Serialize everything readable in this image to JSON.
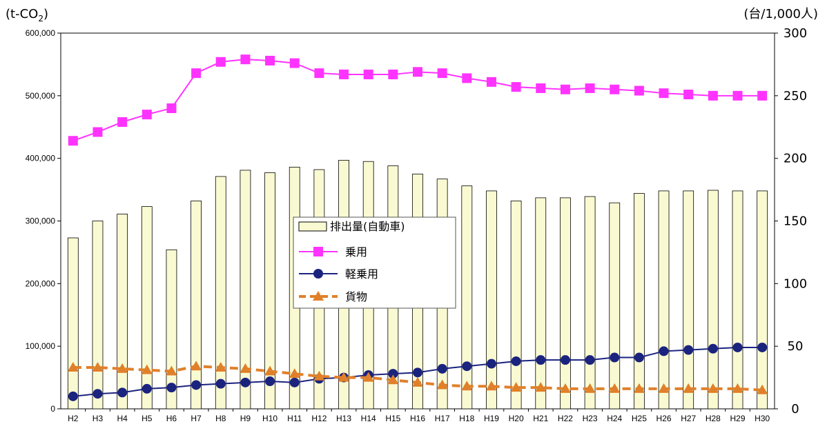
{
  "chart_data": {
    "type": "bar+line",
    "categories": [
      "H2",
      "H3",
      "H4",
      "H5",
      "H6",
      "H7",
      "H8",
      "H9",
      "H10",
      "H11",
      "H12",
      "H13",
      "H14",
      "H15",
      "H16",
      "H17",
      "H18",
      "H19",
      "H20",
      "H21",
      "H22",
      "H23",
      "H24",
      "H25",
      "H26",
      "H27",
      "H28",
      "H29",
      "H30"
    ],
    "left_axis": {
      "unit_label": "(t-CO2)",
      "ylim": [
        0,
        600000
      ],
      "ticks": [
        "0",
        "100,000",
        "200,000",
        "300,000",
        "400,000",
        "500,000",
        "600,000"
      ]
    },
    "right_axis": {
      "unit_label": "(台/1,000人)",
      "ylim": [
        0,
        300
      ],
      "ticks": [
        "0",
        "50",
        "100",
        "150",
        "200",
        "250",
        "300"
      ]
    },
    "bars": {
      "name": "排出量(自動車)",
      "axis": "left",
      "color": "#fafad2",
      "values": [
        273000,
        300000,
        311000,
        323000,
        254000,
        332000,
        371000,
        381000,
        377000,
        386000,
        382000,
        397000,
        395000,
        388000,
        375000,
        367000,
        356000,
        348000,
        332000,
        337000,
        337000,
        339000,
        329000,
        344000,
        348000,
        348000,
        349000,
        348000,
        348000
      ]
    },
    "series": [
      {
        "name": "乗用",
        "axis": "right",
        "color": "#ff33ff",
        "marker": "square",
        "values": [
          214,
          221,
          229,
          235,
          240,
          268,
          277,
          279,
          278,
          276,
          268,
          267,
          267,
          267,
          269,
          268,
          264,
          261,
          257,
          256,
          255,
          256,
          255,
          254,
          252,
          251,
          250,
          250,
          250
        ]
      },
      {
        "name": "軽乗用",
        "axis": "right",
        "color": "#1a237e",
        "marker": "circle",
        "values": [
          10,
          12,
          13,
          16,
          17,
          19,
          20,
          21,
          22,
          21,
          24,
          25,
          27,
          28,
          29,
          32,
          34,
          36,
          38,
          39,
          39,
          39,
          41,
          41,
          46,
          47,
          48,
          49,
          49
        ]
      },
      {
        "name": "貨物",
        "axis": "right",
        "color": "#e0802a",
        "marker": "triangle",
        "dash": true,
        "values": [
          33,
          33,
          32,
          31,
          30,
          34,
          33,
          32,
          30,
          28,
          26,
          25,
          25,
          23,
          21,
          19,
          18,
          18,
          17,
          17,
          16,
          16,
          16,
          16,
          16,
          16,
          16,
          16,
          15
        ]
      }
    ],
    "legend_position": "center"
  }
}
